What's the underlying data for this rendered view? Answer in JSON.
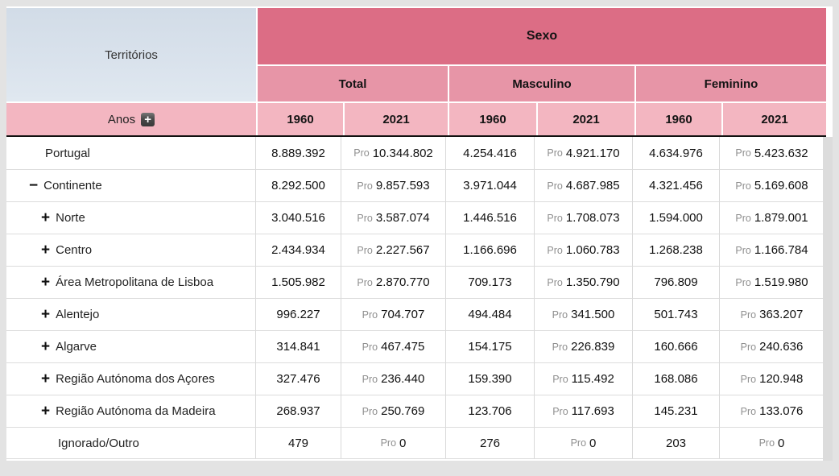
{
  "table": {
    "territories_header": "Territórios",
    "anos_label": "Anos",
    "sexo_header": "Sexo",
    "groups": [
      {
        "label": "Total"
      },
      {
        "label": "Masculino"
      },
      {
        "label": "Feminino"
      }
    ],
    "years": [
      "1960",
      "2021"
    ],
    "pro_label": "Pro",
    "rows": [
      {
        "label": "Portugal",
        "icon": "none",
        "indent": 1,
        "values": [
          "8.889.392",
          "10.344.802",
          "4.254.416",
          "4.921.170",
          "4.634.976",
          "5.423.632"
        ]
      },
      {
        "label": "Continente",
        "icon": "minus",
        "indent": 1,
        "values": [
          "8.292.500",
          "9.857.593",
          "3.971.044",
          "4.687.985",
          "4.321.456",
          "5.169.608"
        ]
      },
      {
        "label": "Norte",
        "icon": "plus",
        "indent": 2,
        "values": [
          "3.040.516",
          "3.587.074",
          "1.446.516",
          "1.708.073",
          "1.594.000",
          "1.879.001"
        ]
      },
      {
        "label": "Centro",
        "icon": "plus",
        "indent": 2,
        "values": [
          "2.434.934",
          "2.227.567",
          "1.166.696",
          "1.060.783",
          "1.268.238",
          "1.166.784"
        ]
      },
      {
        "label": "Área Metropolitana de Lisboa",
        "icon": "plus",
        "indent": 2,
        "values": [
          "1.505.982",
          "2.870.770",
          "709.173",
          "1.350.790",
          "796.809",
          "1.519.980"
        ]
      },
      {
        "label": "Alentejo",
        "icon": "plus",
        "indent": 2,
        "values": [
          "996.227",
          "704.707",
          "494.484",
          "341.500",
          "501.743",
          "363.207"
        ]
      },
      {
        "label": "Algarve",
        "icon": "plus",
        "indent": 2,
        "values": [
          "314.841",
          "467.475",
          "154.175",
          "226.839",
          "160.666",
          "240.636"
        ]
      },
      {
        "label": "Região Autónoma dos Açores",
        "icon": "plus",
        "indent": 2,
        "values": [
          "327.476",
          "236.440",
          "159.390",
          "115.492",
          "168.086",
          "120.948"
        ]
      },
      {
        "label": "Região Autónoma da Madeira",
        "icon": "plus",
        "indent": 2,
        "values": [
          "268.937",
          "250.769",
          "123.706",
          "117.693",
          "145.231",
          "133.076"
        ]
      },
      {
        "label": "Ignorado/Outro",
        "icon": "none",
        "indent": 2,
        "values": [
          "479",
          "0",
          "276",
          "0",
          "203",
          "0"
        ]
      }
    ],
    "colors": {
      "sexo_band": "#dc6d85",
      "group_band": "#e795a7",
      "year_band": "#f3b6c1",
      "territories_cell": "#d9e2ec",
      "pro_flag": "#8f8f8f",
      "page_background": "#e3e3e3"
    }
  }
}
